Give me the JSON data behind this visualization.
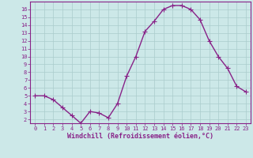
{
  "x": [
    0,
    1,
    2,
    3,
    4,
    5,
    6,
    7,
    8,
    9,
    10,
    11,
    12,
    13,
    14,
    15,
    16,
    17,
    18,
    19,
    20,
    21,
    22,
    23
  ],
  "y": [
    5.0,
    5.0,
    4.5,
    3.5,
    2.5,
    1.5,
    3.0,
    2.8,
    2.2,
    4.0,
    7.5,
    10.0,
    13.2,
    14.5,
    16.0,
    16.5,
    16.5,
    16.0,
    14.7,
    12.0,
    10.0,
    8.5,
    6.2,
    5.5
  ],
  "line_color": "#882288",
  "marker": "+",
  "marker_size": 4,
  "marker_linewidth": 0.8,
  "line_width": 1.0,
  "bg_color": "#cce8e8",
  "grid_color": "#aacccc",
  "xlabel": "Windchill (Refroidissement éolien,°C)",
  "xlabel_color": "#882288",
  "tick_color": "#882288",
  "spine_color": "#882288",
  "ylim": [
    1.5,
    17.0
  ],
  "xlim": [
    -0.5,
    23.5
  ],
  "ytick_values": [
    2,
    3,
    4,
    5,
    6,
    7,
    8,
    9,
    10,
    11,
    12,
    13,
    14,
    15,
    16
  ],
  "xtick_values": [
    0,
    1,
    2,
    3,
    4,
    5,
    6,
    7,
    8,
    9,
    10,
    11,
    12,
    13,
    14,
    15,
    16,
    17,
    18,
    19,
    20,
    21,
    22,
    23
  ],
  "tick_fontsize": 5.0,
  "xlabel_fontsize": 6.0,
  "xlabel_fontweight": "bold"
}
